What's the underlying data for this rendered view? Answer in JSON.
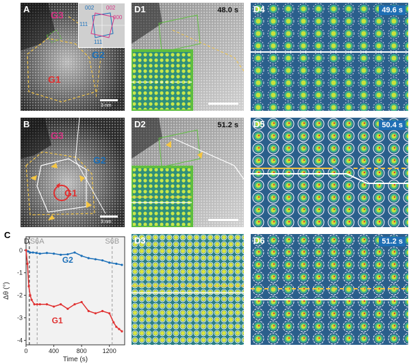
{
  "panels": {
    "A": {
      "label": "A",
      "grains": {
        "g1": "G1",
        "g2": "G2",
        "g3": "G3"
      },
      "scale": "3 nm",
      "fft": {
        "i002": "002",
        "i002b": "002",
        "i000": "000",
        "i111": "111",
        "i111b": "111"
      }
    },
    "B": {
      "label": "B",
      "grains": {
        "g1": "G1",
        "g2": "G2",
        "g3": "G3"
      },
      "scale": "3 nm"
    },
    "D1": {
      "label": "D1",
      "time": "48.0 s"
    },
    "D2": {
      "label": "D2",
      "time": "51.2 s"
    },
    "D3": {
      "label": "D3"
    },
    "D4": {
      "label": "D4",
      "time": "49.6 s"
    },
    "D5": {
      "label": "D5",
      "time": "50.4 s"
    },
    "D6": {
      "label": "D6",
      "time": "51.2 s"
    },
    "C": {
      "label": "C"
    }
  },
  "colors": {
    "g1": "#e03030",
    "g2": "#1b6fb8",
    "g3": "#d63384",
    "yellow": "#f5c542",
    "green": "#5fbf3f"
  },
  "chart_data": {
    "type": "scatter",
    "title": "",
    "xlabel": "Time (s)",
    "ylabel": "Δθ (°)",
    "xlim": [
      0,
      1420
    ],
    "ylim": [
      -4.2,
      0.6
    ],
    "xticks": [
      "0",
      "400",
      "800",
      "1200"
    ],
    "yticks": [
      "0",
      "-1",
      "-2",
      "-3",
      "-4"
    ],
    "annotations": [
      {
        "text": "D",
        "x": 48,
        "color": "#222222"
      },
      {
        "text": "S6A",
        "x": 160,
        "color": "#9a9a9a"
      },
      {
        "text": "S6B",
        "x": 1240,
        "color": "#9a9a9a"
      }
    ],
    "series": [
      {
        "name": "G2",
        "color": "#1b6fb8",
        "x": [
          0,
          30,
          60,
          100,
          150,
          200,
          300,
          400,
          500,
          600,
          700,
          800,
          900,
          1000,
          1100,
          1200,
          1300,
          1380
        ],
        "values": [
          0.0,
          -0.05,
          -0.1,
          -0.1,
          -0.12,
          -0.15,
          -0.12,
          -0.15,
          -0.2,
          -0.18,
          -0.1,
          -0.25,
          -0.35,
          -0.4,
          -0.45,
          -0.55,
          -0.6,
          -0.65
        ]
      },
      {
        "name": "G1",
        "color": "#e03030",
        "x": [
          0,
          20,
          40,
          60,
          80,
          120,
          160,
          200,
          300,
          400,
          500,
          600,
          700,
          800,
          900,
          1000,
          1100,
          1200,
          1260,
          1300,
          1340,
          1380
        ],
        "values": [
          0.0,
          -0.6,
          -1.6,
          -2.0,
          -2.2,
          -2.4,
          -2.4,
          -2.4,
          -2.4,
          -2.5,
          -2.4,
          -2.6,
          -2.4,
          -2.3,
          -2.7,
          -2.8,
          -2.7,
          -2.8,
          -3.2,
          -3.4,
          -3.5,
          -3.6
        ]
      }
    ]
  }
}
